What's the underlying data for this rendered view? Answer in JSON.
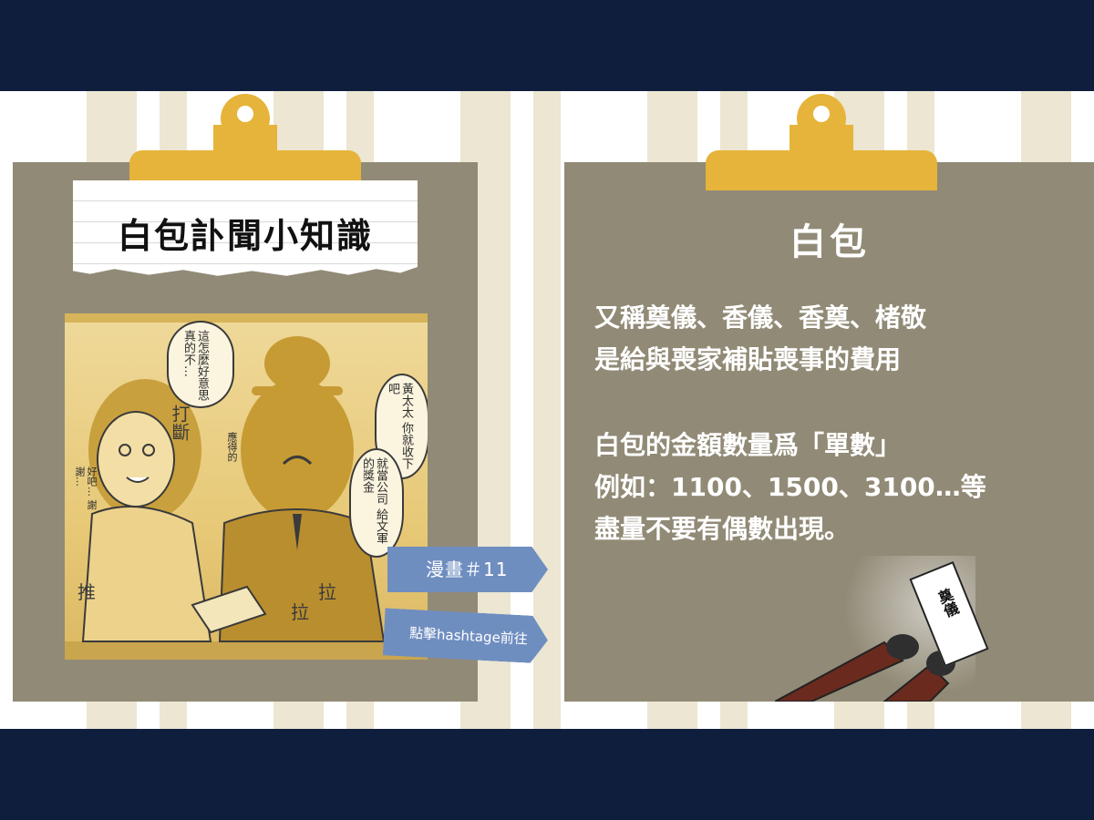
{
  "left_card": {
    "title": "白包訃聞小知識",
    "comic": {
      "bubble_1": "這怎麼好意思 真的不…",
      "bubble_2": "黃太太 你就收下吧",
      "bubble_3": "就當公司 給文軍的獎金",
      "sfx_cut": "打斷",
      "sfx_push": "推",
      "sfx_pull_1": "拉",
      "sfx_pull_2": "拉",
      "side_1": "好吧… 謝謝…",
      "side_2": "應得的"
    },
    "comic_tag": "漫畫＃11",
    "hash_tag": "點擊hashtage前往"
  },
  "right_card": {
    "title": "白包",
    "para1": [
      "又稱奠儀、香儀、香奠、楮敬",
      "是給與喪家補貼喪事的費用"
    ],
    "para2": [
      "白包的金額數量爲「單數」",
      "例如：1100、1500、3100…等",
      "盡量不要有偶數出現。"
    ],
    "envelope_text": "奠儀"
  },
  "colors": {
    "navy": "#0f1e3d",
    "board": "#918a76",
    "clip": "#e6b43a",
    "tag": "#6f8ec0"
  }
}
